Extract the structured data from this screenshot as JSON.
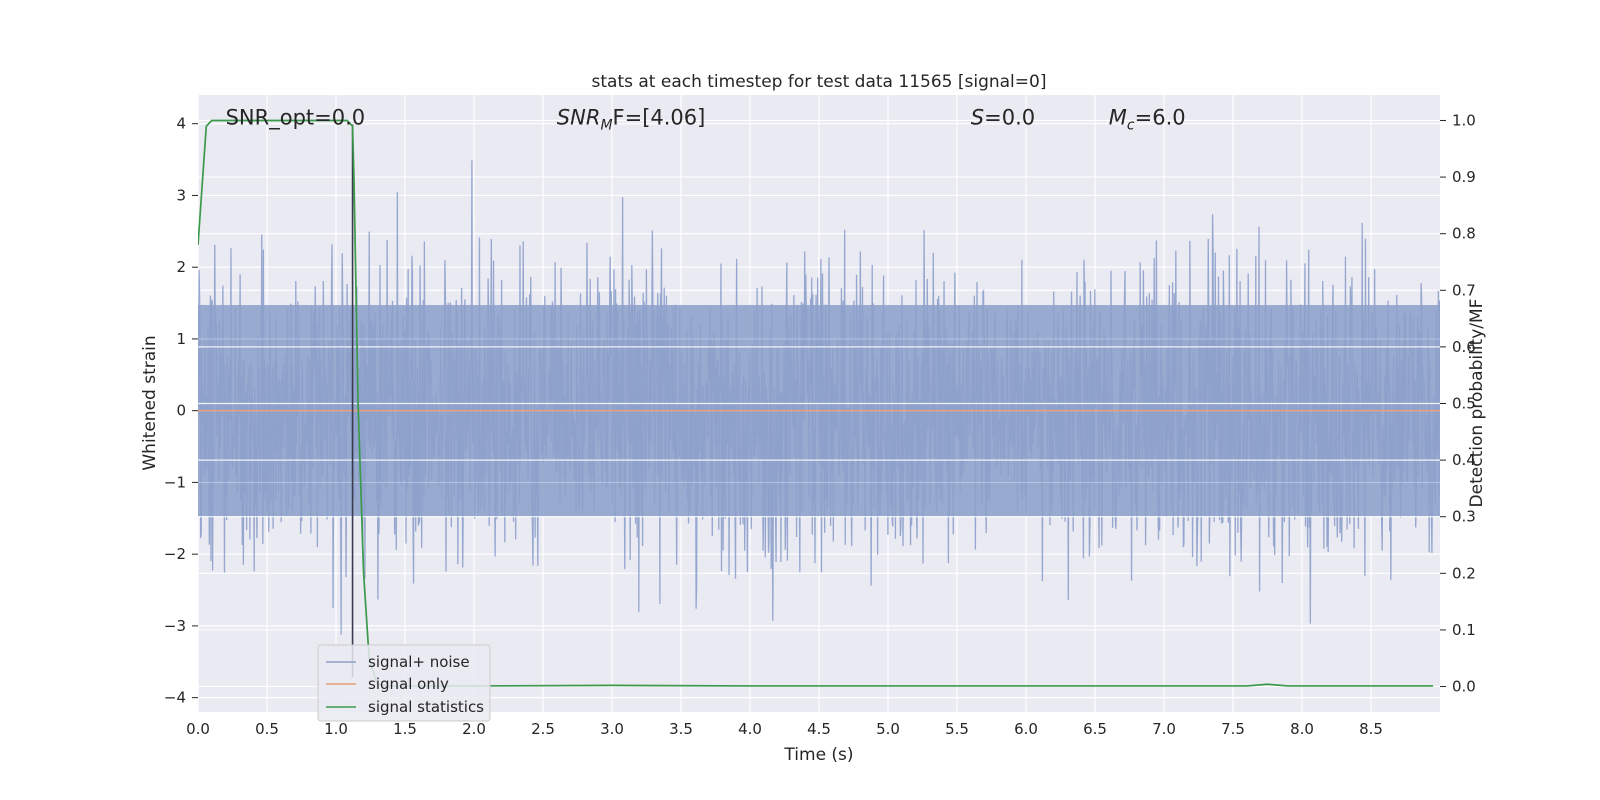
{
  "chart_data": {
    "type": "line",
    "title": "stats at each timestep for test data 11565 [signal=0]",
    "xlabel": "Time (s)",
    "ylabel": "Whitened strain",
    "y2label": "Detection probability/MF",
    "xlim": [
      0,
      9.0
    ],
    "ylim": [
      -4.2,
      4.4
    ],
    "y2lim": [
      -0.045,
      1.045
    ],
    "xticks": [
      "0.0",
      "0.5",
      "1.0",
      "1.5",
      "2.0",
      "2.5",
      "3.0",
      "3.5",
      "4.0",
      "4.5",
      "5.0",
      "5.5",
      "6.0",
      "6.5",
      "7.0",
      "7.5",
      "8.0",
      "8.5"
    ],
    "yticks": [
      "−4",
      "−3",
      "−2",
      "−1",
      "0",
      "1",
      "2",
      "3",
      "4"
    ],
    "y2ticks": [
      "0.0",
      "0.1",
      "0.2",
      "0.3",
      "0.4",
      "0.5",
      "0.6",
      "0.7",
      "0.8",
      "0.9",
      "1.0"
    ],
    "grid": true,
    "legend_position": "lower-left",
    "colors": {
      "background": "#eaeaf2",
      "grid": "#ffffff",
      "signal_noise": "#8da0cb",
      "signal_only": "#e8a07a",
      "statistics": "#3a9a4a",
      "marker_line": "#3b3b4f"
    },
    "annotations": [
      {
        "id": "snr-opt",
        "text": "SNR_opt=0.0",
        "x": 0.2,
        "y": 4.1
      },
      {
        "id": "snr-mf",
        "text": "SNR",
        "sub": "M",
        "rest": "F=[4.06]",
        "x": 2.6,
        "y": 4.1
      },
      {
        "id": "s-value",
        "text": "S",
        "sub": "",
        "rest": "=0.0",
        "x": 5.6,
        "y": 4.1
      },
      {
        "id": "mc-value",
        "text": "M",
        "sub": "c",
        "rest": "=6.0",
        "x": 6.6,
        "y": 4.1
      }
    ],
    "marker_time": 1.12,
    "series": [
      {
        "name": "signal+ noise",
        "kind": "noise",
        "n": 2300,
        "seed": 11565,
        "envelope": 1.55
      },
      {
        "name": "signal only",
        "kind": "flat",
        "value": 0.0
      },
      {
        "name": "signal statistics",
        "kind": "probability",
        "x": [
          0.0,
          0.06,
          0.1,
          0.2,
          0.4,
          0.6,
          0.8,
          1.0,
          1.08,
          1.12,
          1.13,
          1.16,
          1.2,
          1.24,
          1.3,
          1.4,
          1.6,
          2.0,
          3.0,
          4.0,
          5.0,
          6.0,
          7.0,
          7.6,
          7.75,
          7.9,
          8.5,
          8.95
        ],
        "y": [
          0.78,
          0.99,
          1.0,
          1.0,
          1.0,
          1.0,
          1.0,
          1.0,
          1.0,
          0.99,
          0.9,
          0.5,
          0.2,
          0.05,
          0.003,
          0.001,
          0.001,
          0.001,
          0.002,
          0.001,
          0.001,
          0.001,
          0.001,
          0.001,
          0.004,
          0.001,
          0.001,
          0.001
        ]
      }
    ]
  }
}
